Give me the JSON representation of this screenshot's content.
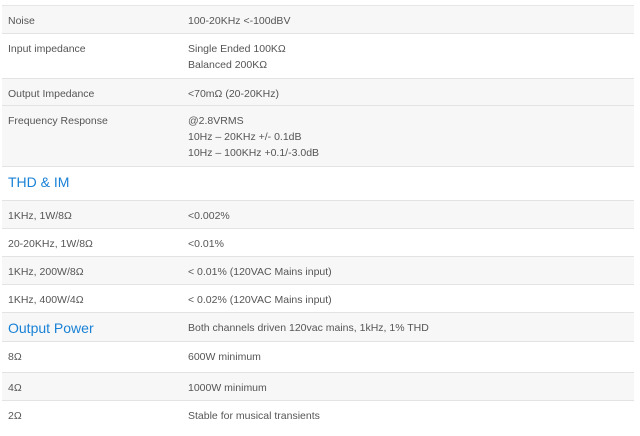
{
  "rows": [
    {
      "label": "Noise",
      "value": [
        "100-20KHz <-100dBV"
      ]
    },
    {
      "label": "Input impedance",
      "value": [
        "Single Ended 100KΩ",
        "Balanced 200KΩ"
      ]
    },
    {
      "label": "Output Impedance",
      "value": [
        "<70mΩ (20-20KHz)"
      ]
    },
    {
      "label": "Frequency Response",
      "value": [
        "@2.8VRMS",
        "10Hz – 20KHz +/- 0.1dB",
        "10Hz – 100KHz +0.1/-3.0dB"
      ]
    }
  ],
  "thd": {
    "heading": "THD & IM",
    "rows": [
      {
        "label": "1KHz, 1W/8Ω",
        "value": "<0.002%"
      },
      {
        "label": "20-20KHz, 1W/8Ω",
        "value": "<0.01%"
      },
      {
        "label": "1KHz, 200W/8Ω",
        "value": "< 0.01% (120VAC Mains input)"
      },
      {
        "label": "1KHz, 400W/4Ω",
        "value": "< 0.02% (120VAC Mains input)"
      }
    ]
  },
  "power": {
    "heading": "Output Power",
    "note": "Both channels driven 120vac mains, 1kHz, 1% THD",
    "rows": [
      {
        "label": "8Ω",
        "value": "600W minimum"
      },
      {
        "label": "4Ω",
        "value": "1000W minimum"
      },
      {
        "label": "2Ω",
        "value": "Stable for musical transients"
      }
    ]
  },
  "colors": {
    "heading": "#1a82d6"
  }
}
